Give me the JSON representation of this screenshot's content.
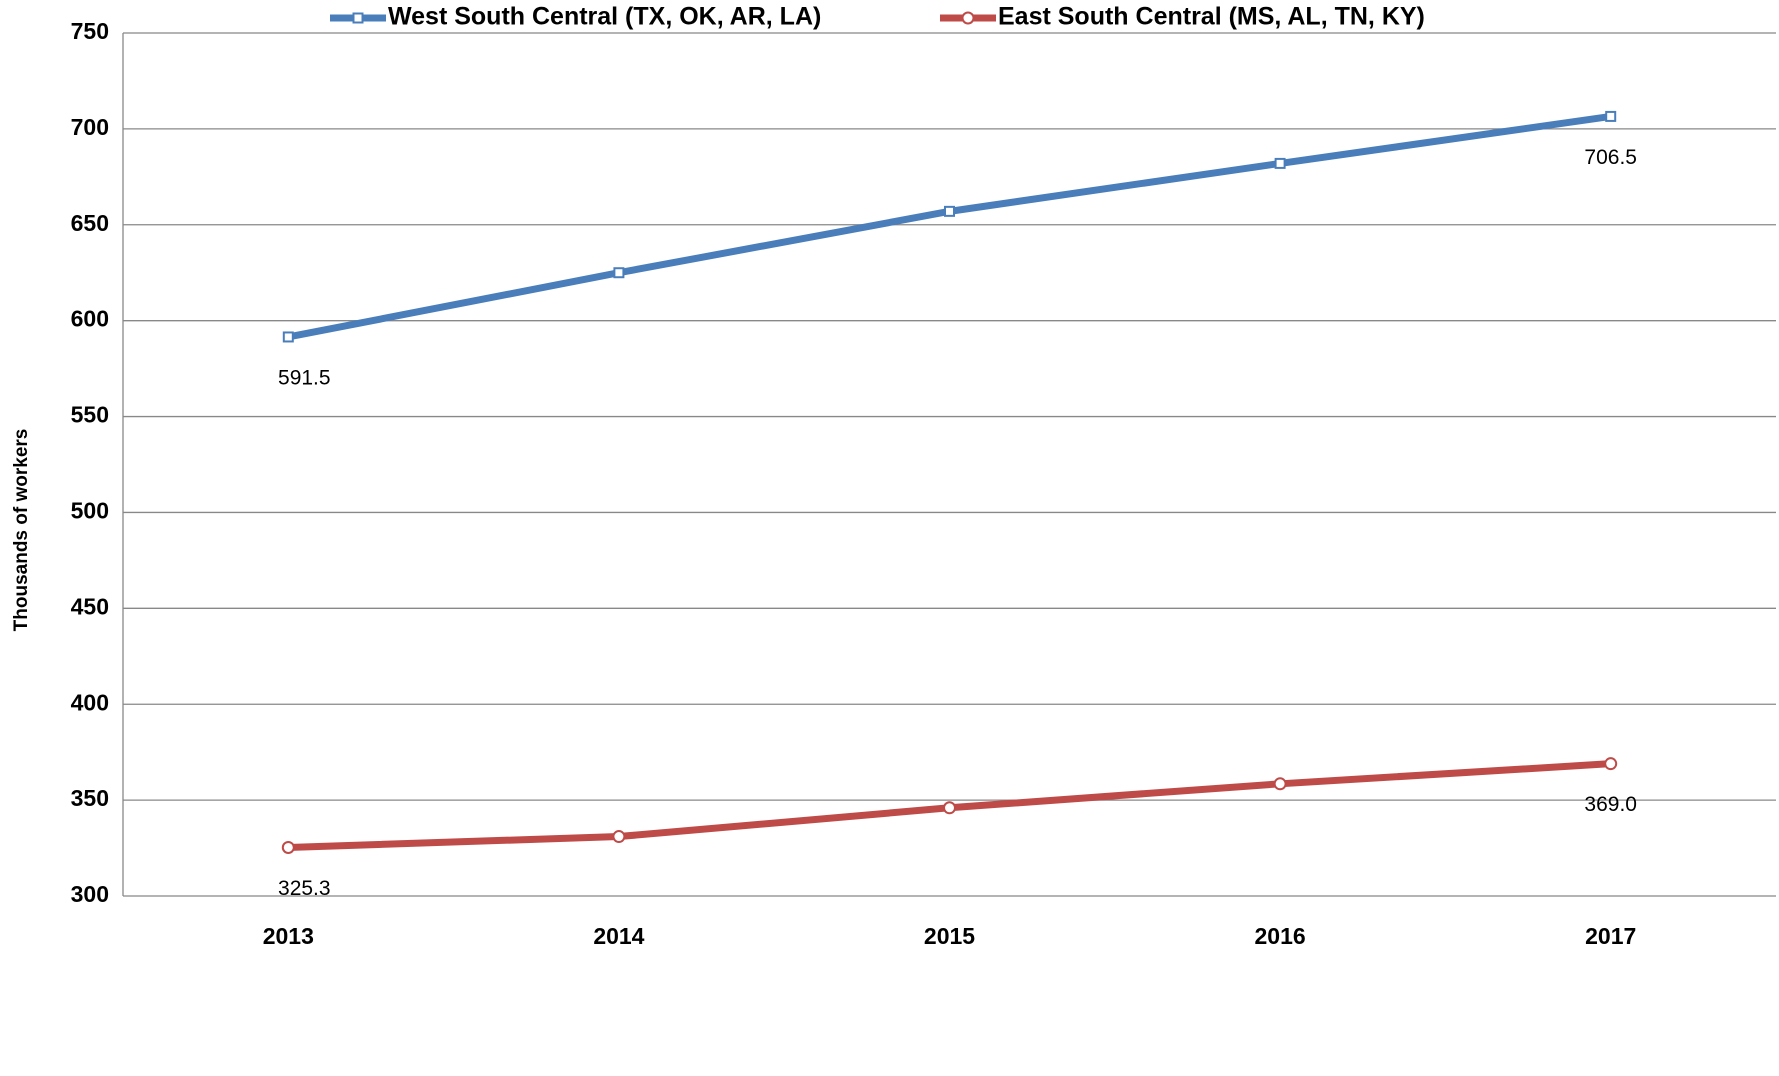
{
  "chart_data": {
    "type": "line",
    "y_label": "Thousands of workers",
    "categories": [
      "2013",
      "2014",
      "2015",
      "2016",
      "2017"
    ],
    "series": [
      {
        "name": "West South Central (TX, OK, AR, LA)",
        "color": "#4a7ebb",
        "marker": "square",
        "values": [
          591.5,
          625,
          657,
          682,
          706.5
        ],
        "value_labels": [
          "591.5",
          null,
          null,
          null,
          "706.5"
        ]
      },
      {
        "name": "East South Central (MS, AL, TN, KY)",
        "color": "#be4b48",
        "marker": "circle",
        "values": [
          325.3,
          331,
          346,
          358.5,
          369.0
        ],
        "value_labels": [
          "325.3",
          null,
          null,
          null,
          "369.0"
        ]
      }
    ],
    "ylim": [
      300,
      750
    ],
    "yticks": [
      300,
      350,
      400,
      450,
      500,
      550,
      600,
      650,
      700,
      750
    ],
    "grid": true,
    "legend": "top"
  }
}
